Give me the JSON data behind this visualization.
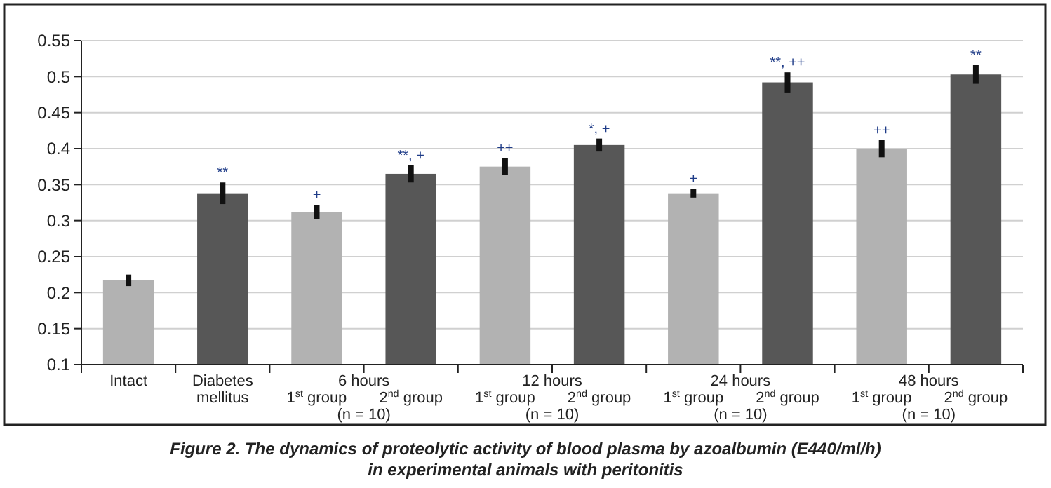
{
  "chart_data": {
    "type": "bar",
    "title": "Figure 2. The dynamics of proteolytic activity of blood plasma by azoalbumin (E440/ml/h)",
    "subtitle": "in experimental animals with peritonitis",
    "categories": [
      "Intact",
      "Diabetes\nmellitus",
      "1$^{st}$ group",
      "2$^{nd}$ group",
      "1$^{st}$ group",
      "2$^{nd}$ group",
      "1$^{st}$ group",
      "2$^{nd}$ group",
      "1$^{st}$ group",
      "2$^{nd}$ group"
    ],
    "values": [
      0.217,
      0.338,
      0.312,
      0.365,
      0.375,
      0.405,
      0.338,
      0.492,
      0.4,
      0.503
    ],
    "colors": [
      "#b2b2b2",
      "#575757",
      "#b2b2b2",
      "#575757",
      "#b2b2b2",
      "#575757",
      "#b2b2b2",
      "#575757",
      "#b2b2b2",
      "#575757"
    ],
    "errors": [
      0.008,
      0.015,
      0.01,
      0.012,
      0.012,
      0.009,
      0.006,
      0.014,
      0.012,
      0.013
    ],
    "value_labels": [
      null,
      "**",
      "+",
      "**, +",
      "++",
      "*, +",
      "+",
      "**, ++",
      "++",
      "**"
    ],
    "annotations": [
      "6 hours",
      "(n = 10)",
      "12 hours",
      "(n = 10)",
      "24 hours",
      "(n = 10)",
      "48 hours",
      "(n = 10)"
    ],
    "ylim": [
      0.1,
      0.55
    ],
    "yticks": [
      0.1,
      0.15,
      0.2,
      0.25,
      0.3,
      0.35,
      0.4,
      0.45,
      0.5,
      0.55
    ],
    "grid": "y"
  }
}
